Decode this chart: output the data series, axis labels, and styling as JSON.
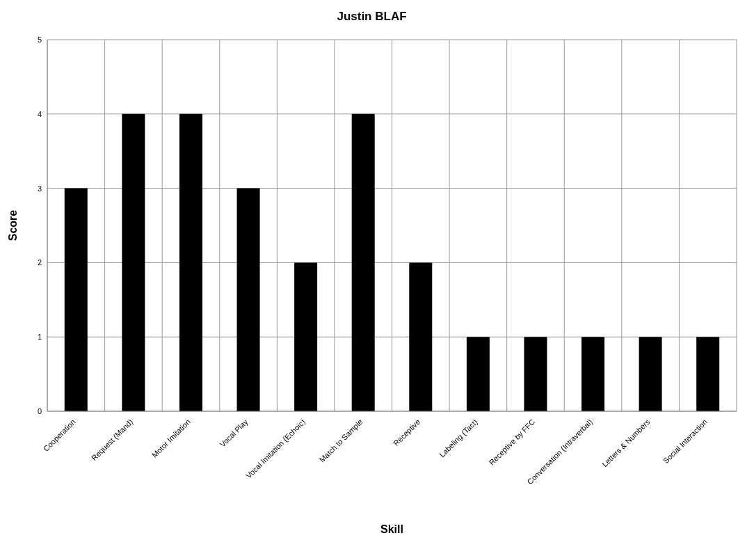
{
  "chart_data": {
    "type": "bar",
    "title": "Justin BLAF",
    "xlabel": "Skill",
    "ylabel": "Score",
    "categories": [
      "Cooperation",
      "Request (Mand)",
      "Motor Imitation",
      "Vocal Play",
      "Vocal Imitation (Echoic)",
      "Match to Sample",
      "Receptive",
      "Labeling (Tact)",
      "Receptive by FFC",
      "Conversation (Intraverbal)",
      "Letters & Numbers",
      "Social Interaction"
    ],
    "values": [
      3,
      4,
      4,
      3,
      2,
      4,
      2,
      1,
      1,
      1,
      1,
      1
    ],
    "color": "#000000",
    "ylim": [
      0,
      5
    ],
    "yticks": [
      0,
      1,
      2,
      3,
      4,
      5
    ],
    "grid": true,
    "legend": false
  }
}
